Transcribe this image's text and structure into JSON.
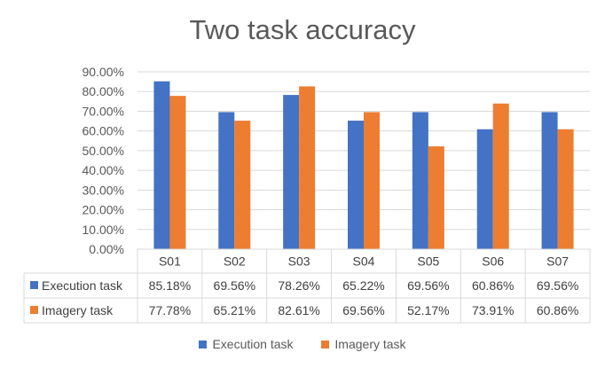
{
  "chart_data": {
    "type": "bar",
    "title": "Two task accuracy",
    "categories": [
      "S01",
      "S02",
      "S03",
      "S04",
      "S05",
      "S06",
      "S07"
    ],
    "series": [
      {
        "name": "Execution task",
        "color": "#4472C4",
        "values": [
          85.18,
          69.56,
          78.26,
          65.22,
          69.56,
          60.86,
          69.56
        ],
        "labels": [
          "85.18%",
          "69.56%",
          "78.26%",
          "65.22%",
          "69.56%",
          "60.86%",
          "69.56%"
        ]
      },
      {
        "name": "Imagery task",
        "color": "#ED7D31",
        "values": [
          77.78,
          65.21,
          82.61,
          69.56,
          52.17,
          73.91,
          60.86
        ],
        "labels": [
          "77.78%",
          "65.21%",
          "82.61%",
          "69.56%",
          "52.17%",
          "73.91%",
          "60.86%"
        ]
      }
    ],
    "ylim": [
      0,
      90
    ],
    "yticks": [
      "0.00%",
      "10.00%",
      "20.00%",
      "30.00%",
      "40.00%",
      "50.00%",
      "60.00%",
      "70.00%",
      "80.00%",
      "90.00%"
    ],
    "grid": true,
    "data_table": true,
    "legend_position": "bottom"
  }
}
